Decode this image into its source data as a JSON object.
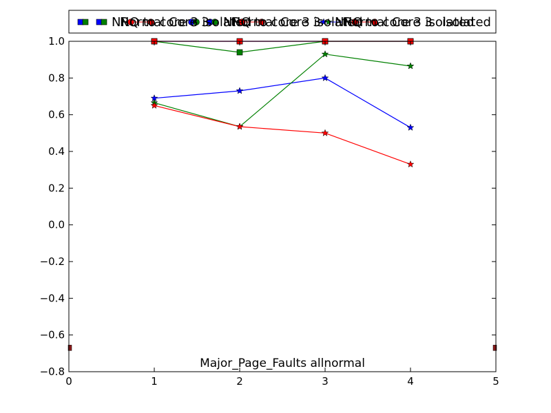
{
  "chart_data": {
    "type": "line",
    "title": "Major_Page_Faults allnormal",
    "xlabel": "",
    "ylabel": "",
    "xlim": [
      0,
      5
    ],
    "ylim": [
      -0.8,
      1.0
    ],
    "grid": false,
    "legend_placement": "top",
    "x_ticks": [
      0,
      1,
      2,
      3,
      4,
      5
    ],
    "y_ticks": [
      -0.8,
      -0.6,
      -0.4,
      -0.2,
      0.0,
      0.2,
      0.4,
      0.6,
      0.8,
      1.0
    ],
    "x_tick_labels": [
      "0",
      "1",
      "2",
      "3",
      "4",
      "5"
    ],
    "y_tick_labels": [
      "−0.8",
      "−0.6",
      "−0.4",
      "−0.2",
      "0.0",
      "0.2",
      "0.4",
      "0.6",
      "0.8",
      "1.0"
    ],
    "legend_text": {
      "overlap_1": "NRQ to core 3 isolated",
      "overlap_2": "Normal Core 3",
      "right": "isolated"
    },
    "series": [
      {
        "name": "",
        "color": "#0000ff",
        "marker": "square",
        "x": [
          1,
          2,
          3,
          4
        ],
        "y": [
          1.0,
          1.0,
          1.0,
          1.0
        ]
      },
      {
        "name": "",
        "color": "#008000",
        "marker": "square",
        "x": [
          1,
          2,
          3,
          4
        ],
        "y": [
          1.0,
          0.94,
          1.0,
          1.0
        ]
      },
      {
        "name": "",
        "color": "#ff0000",
        "marker": "square",
        "x": [
          1,
          2,
          3,
          4
        ],
        "y": [
          1.0,
          1.0,
          1.0,
          1.0
        ]
      },
      {
        "name": "",
        "color": "#0000ff",
        "marker": "star",
        "x": [
          1,
          2,
          3,
          4
        ],
        "y": [
          0.69,
          0.73,
          0.8,
          0.53
        ]
      },
      {
        "name": "",
        "color": "#008000",
        "marker": "star",
        "x": [
          1,
          2,
          3,
          4
        ],
        "y": [
          0.665,
          0.535,
          0.93,
          0.865
        ]
      },
      {
        "name": "",
        "color": "#ff0000",
        "marker": "star",
        "x": [
          1,
          2,
          3,
          4
        ],
        "y": [
          0.65,
          0.535,
          0.5,
          0.33
        ]
      }
    ],
    "edge_markers": {
      "color": "#8b1a1a",
      "x": [
        0,
        5
      ],
      "y": [
        -0.67,
        -0.67
      ]
    }
  }
}
